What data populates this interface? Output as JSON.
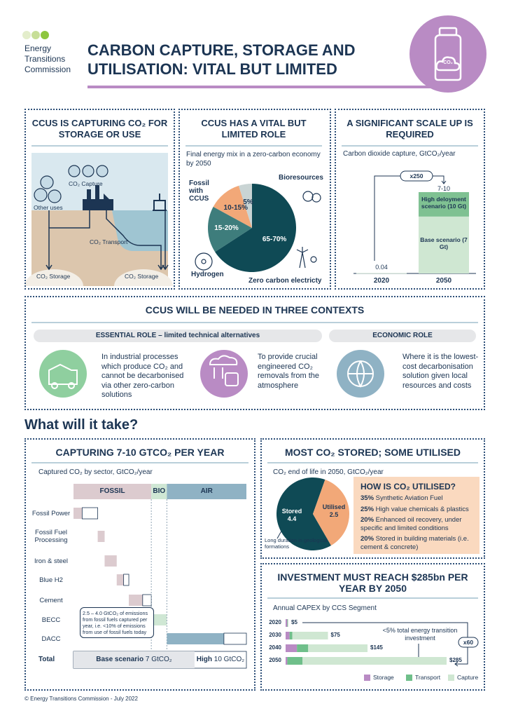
{
  "header": {
    "logo_text": "Energy Transitions Commission",
    "title": "CARBON CAPTURE, STORAGE AND UTILISATION: VITAL BUT LIMITED",
    "icon_label": "CO₂"
  },
  "capture_overview": {
    "title": "CCUS IS CAPTURING CO₂ FOR STORAGE OR USE",
    "labels": {
      "capture": "CO₂ Capture",
      "other_uses": "Other uses",
      "transport": "CO₂ Transport",
      "storage_land": "CO₂ Storage",
      "storage_sea": "CO₂ Storage"
    }
  },
  "energy_mix": {
    "type": "pie",
    "title": "CCUS HAS A VITAL BUT LIMITED ROLE",
    "subtitle": "Final energy mix in a zero-carbon economy by 2050",
    "slices": [
      {
        "name": "Zero carbon electricty",
        "label": "65-70%",
        "value": 67.5,
        "color": "#0f4a55"
      },
      {
        "name": "Hydrogen",
        "label": "15-20%",
        "value": 17.5,
        "color": "#3e7d7c"
      },
      {
        "name": "Fossil with CCUS",
        "label": "10-15%",
        "value": 12.5,
        "color": "#f2a878"
      },
      {
        "name": "Bioresources",
        "label": "5%",
        "value": 5,
        "color": "#c9d4d4"
      }
    ]
  },
  "scale_up": {
    "type": "bar",
    "title": "A SIGNIFICANT SCALE UP IS REQUIRED",
    "subtitle": "Carbon dioxide capture, GtCO₂/year",
    "categories": [
      "2020",
      "2050"
    ],
    "multiplier": "x250",
    "range_label": "7-10",
    "series": [
      {
        "name": "High deloyment scenario (10 Gt)",
        "color": "#7fc192",
        "values": [
          null,
          10
        ]
      },
      {
        "name": "Base scenario (7 Gt)",
        "color": "#cfe7d2",
        "values": [
          0.04,
          7
        ],
        "value_labels": [
          "0.04",
          null
        ]
      }
    ]
  },
  "contexts": {
    "title": "CCUS WILL BE NEEDED IN THREE CONTEXTS",
    "groups": [
      "ESSENTIAL ROLE – limited technical alternatives",
      "ECONOMIC ROLE"
    ],
    "items": [
      "In industrial processes which produce CO₂ and cannot be decarbonised via other zero-carbon solutions",
      "To provide crucial engineered CO₂ removals from the atmosphere",
      "Where it is the lowest-cost decarbonisation solution given local resources and costs"
    ]
  },
  "section_heading": "What will it take?",
  "sector_capture": {
    "type": "waterfall",
    "title": "CAPTURING 7-10 GTCO₂ PER YEAR",
    "subtitle": "Captured CO₂ by sector, GtCO₂/year",
    "groups": [
      {
        "name": "FOSSIL",
        "color": "#dccbcf",
        "sectors": [
          "Fossil Power",
          "Fossil Fuel Processing",
          "Iron & steel",
          "Blue H2",
          "Cement"
        ],
        "base": [
          0.5,
          0.4,
          0.7,
          0.4,
          0.8
        ],
        "extra": [
          0.9,
          0,
          0,
          0.3,
          0.5
        ]
      },
      {
        "name": "BIO",
        "color": "#cfe7d4",
        "sectors": [
          "BECC"
        ],
        "base": [
          0.9
        ],
        "extra": [
          0
        ]
      },
      {
        "name": "AIR",
        "color": "#8fb2c4",
        "sectors": [
          "DACC"
        ],
        "base": [
          3.3
        ],
        "extra": [
          1.3
        ]
      }
    ],
    "note": "2.5 – 4.0 GtCO₂ of emissions from fossil fuels captured per year, i.e. <10% of emissions from use of fossil fuels today",
    "total": {
      "label": "Total",
      "base": 7,
      "base_name": "Base scenario",
      "base_label": "7 GtCO₂",
      "high": 10,
      "high_name": "High",
      "high_label": "10 GtCO₂"
    }
  },
  "end_of_life": {
    "type": "pie",
    "title": "MOST CO₂ STORED; SOME UTILISED",
    "subtitle": "CO₂ end of life in 2050, GtCO₂/year",
    "slices": [
      {
        "name": "Stored",
        "value": 4.4,
        "color": "#0f4a55"
      },
      {
        "name": "Utilised",
        "value": 2.5,
        "color": "#f2a878"
      }
    ],
    "note": "Long duration in geological formations",
    "uses_title": "HOW IS CO₂ UTILISED?",
    "uses": [
      {
        "share": "35%",
        "text": "Synthetic Aviation Fuel"
      },
      {
        "share": "25%",
        "text": "High value chemicals & plastics"
      },
      {
        "share": "20%",
        "text": "Enhanced oil recovery, under specific and limited conditions"
      },
      {
        "share": "20%",
        "text": "Stored in building materials (i.e. cement & concrete)"
      }
    ]
  },
  "investment": {
    "type": "stacked-bar",
    "title": "INVESTMENT MUST REACH $285bn PER YEAR BY 2050",
    "subtitle": "Annual CAPEX by CCS Segment",
    "categories": [
      "2020",
      "2030",
      "2040",
      "2050"
    ],
    "series": [
      {
        "name": "Storage",
        "color": "#b98bc4",
        "values": [
          3,
          7,
          20,
          3
        ]
      },
      {
        "name": "Transport",
        "color": "#6fbf8a",
        "values": [
          1,
          5,
          20,
          27
        ]
      },
      {
        "name": "Capture",
        "color": "#cfe7d2",
        "values": [
          1,
          63,
          105,
          255
        ]
      }
    ],
    "totals": [
      5,
      75,
      145,
      285
    ],
    "value_labels": [
      "$5",
      "$75",
      "$145",
      "$285"
    ],
    "note": "<5% total energy transition investment",
    "multiplier": "x60"
  },
  "footer": "© Energy Transitions Commission - July 2022"
}
